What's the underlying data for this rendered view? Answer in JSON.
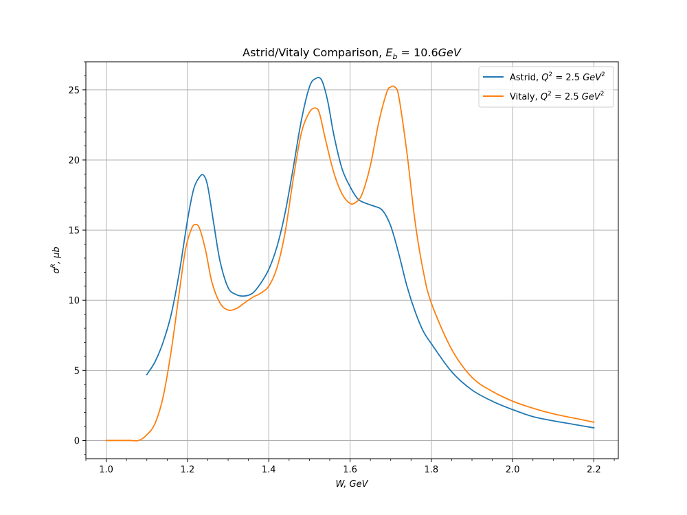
{
  "chart_data": {
    "type": "line",
    "title_prefix": "Astrid/Vitaly Comparison, ",
    "title_math_var": "E",
    "title_math_sub": "b",
    "title_math_rest": " = 10.6",
    "title_math_unit": "GeV",
    "xlabel": "W, GeV",
    "ylabel_sym": "σ",
    "ylabel_sup": "R",
    "ylabel_rest": ", μb",
    "xlim": [
      0.95,
      2.26
    ],
    "ylim": [
      -1.3,
      27.0
    ],
    "xticks": [
      1.0,
      1.2,
      1.4,
      1.6,
      1.8,
      2.0,
      2.2
    ],
    "xtick_labels": [
      "1.0",
      "1.2",
      "1.4",
      "1.6",
      "1.8",
      "2.0",
      "2.2"
    ],
    "yticks": [
      0,
      5,
      10,
      15,
      20,
      25
    ],
    "ytick_labels": [
      "0",
      "5",
      "10",
      "15",
      "20",
      "25"
    ],
    "grid": true,
    "legend_position": "top-right",
    "series": [
      {
        "name": "Astrid, Q² = 2.5 GeV²",
        "legend_prefix": "Astrid, ",
        "color": "#1f77b4",
        "x": [
          1.1,
          1.12,
          1.14,
          1.16,
          1.18,
          1.2,
          1.215,
          1.23,
          1.24,
          1.25,
          1.265,
          1.28,
          1.3,
          1.32,
          1.34,
          1.36,
          1.38,
          1.4,
          1.42,
          1.44,
          1.46,
          1.48,
          1.5,
          1.515,
          1.53,
          1.545,
          1.56,
          1.58,
          1.6,
          1.62,
          1.64,
          1.66,
          1.68,
          1.7,
          1.72,
          1.74,
          1.76,
          1.78,
          1.8,
          1.85,
          1.9,
          1.95,
          2.0,
          2.05,
          2.1,
          2.15,
          2.2
        ],
        "y": [
          4.7,
          5.6,
          7.0,
          9.0,
          12.0,
          15.7,
          17.9,
          18.8,
          18.9,
          18.1,
          15.4,
          12.8,
          10.9,
          10.4,
          10.3,
          10.5,
          11.2,
          12.2,
          13.8,
          16.2,
          19.4,
          22.8,
          25.2,
          25.8,
          25.7,
          24.2,
          21.8,
          19.4,
          18.1,
          17.2,
          16.9,
          16.7,
          16.4,
          15.3,
          13.3,
          11.0,
          9.2,
          7.8,
          6.9,
          4.9,
          3.6,
          2.8,
          2.2,
          1.7,
          1.4,
          1.15,
          0.9
        ]
      },
      {
        "name": "Vitaly, Q² = 2.5 GeV²",
        "legend_prefix": "Vitaly, ",
        "color": "#ff7f0e",
        "x": [
          1.0,
          1.03,
          1.06,
          1.08,
          1.1,
          1.12,
          1.14,
          1.16,
          1.18,
          1.195,
          1.21,
          1.22,
          1.23,
          1.245,
          1.26,
          1.28,
          1.3,
          1.32,
          1.34,
          1.36,
          1.38,
          1.4,
          1.42,
          1.44,
          1.46,
          1.48,
          1.5,
          1.515,
          1.525,
          1.54,
          1.56,
          1.58,
          1.6,
          1.615,
          1.63,
          1.65,
          1.67,
          1.69,
          1.7,
          1.71,
          1.72,
          1.74,
          1.76,
          1.78,
          1.8,
          1.85,
          1.9,
          1.95,
          2.0,
          2.05,
          2.1,
          2.15,
          2.2
        ],
        "y": [
          0.0,
          0.0,
          0.0,
          0.0,
          0.4,
          1.2,
          3.1,
          6.4,
          10.6,
          13.6,
          15.1,
          15.4,
          15.1,
          13.5,
          11.3,
          9.8,
          9.3,
          9.4,
          9.8,
          10.2,
          10.5,
          11.0,
          12.3,
          14.8,
          18.6,
          21.9,
          23.4,
          23.7,
          23.3,
          21.4,
          19.1,
          17.6,
          16.9,
          17.0,
          17.6,
          19.6,
          22.6,
          24.8,
          25.2,
          25.2,
          24.5,
          20.5,
          15.6,
          12.1,
          9.8,
          6.5,
          4.5,
          3.5,
          2.8,
          2.3,
          1.9,
          1.6,
          1.3
        ]
      }
    ]
  }
}
